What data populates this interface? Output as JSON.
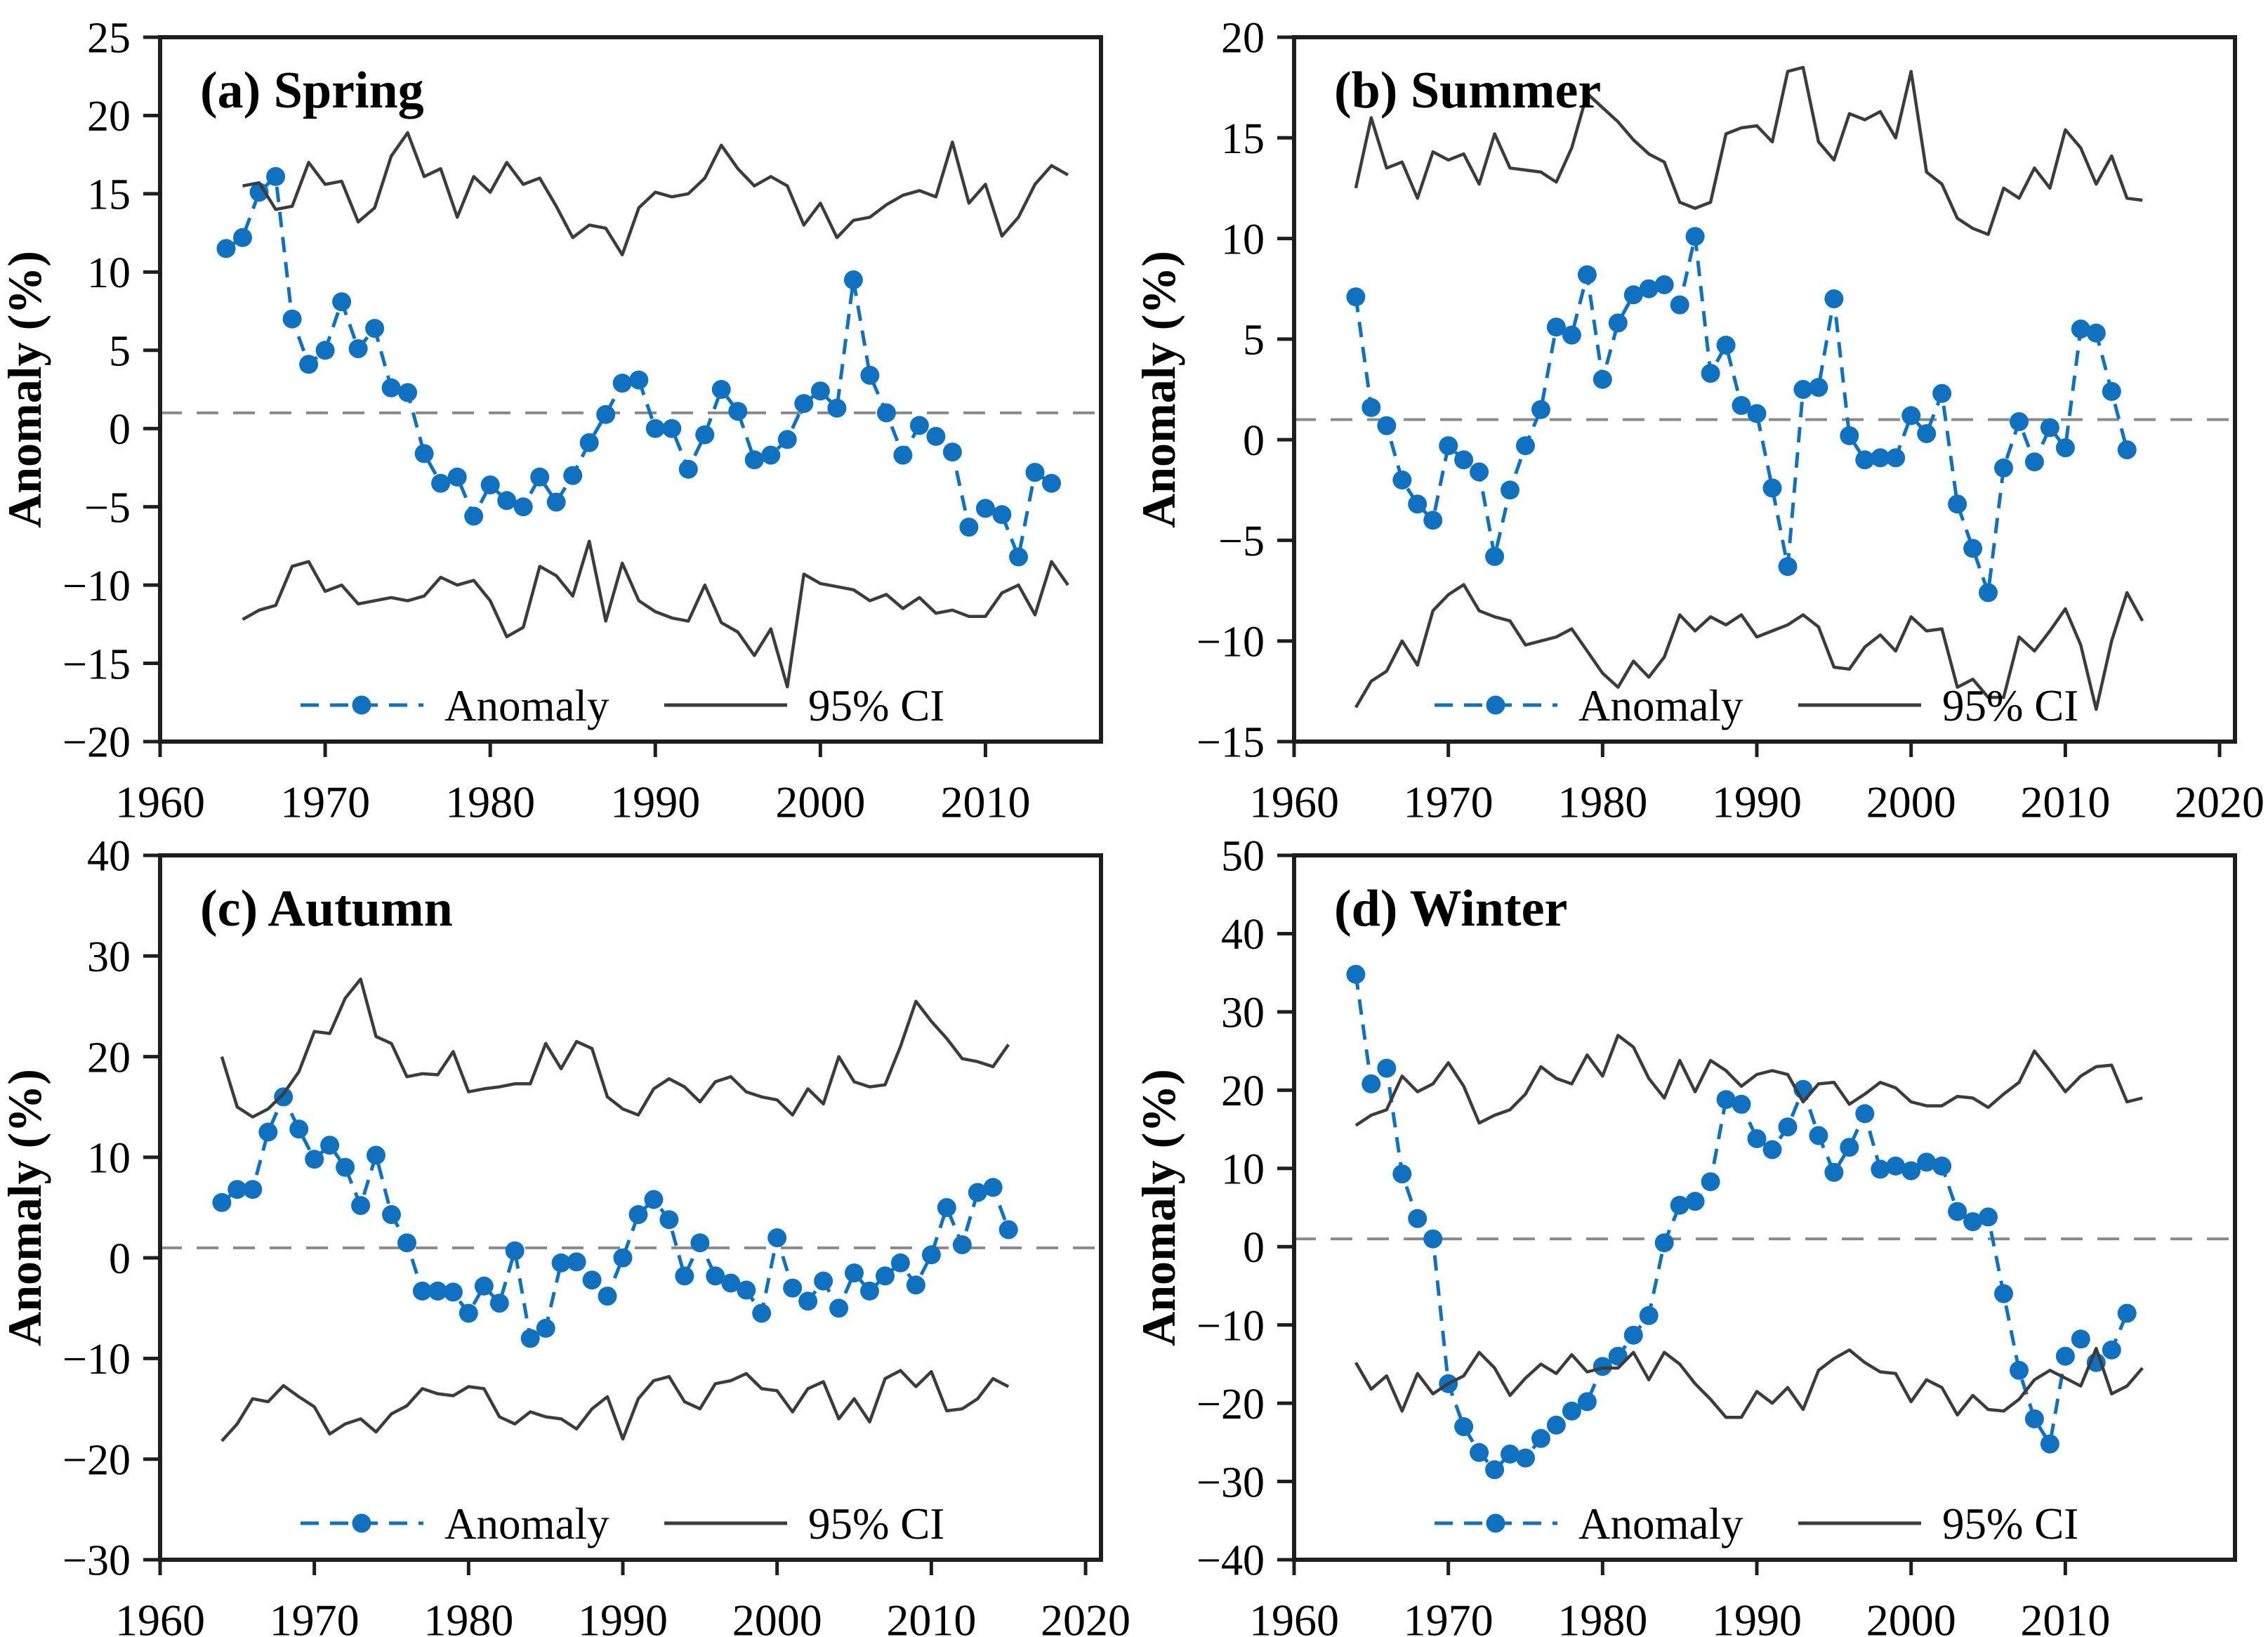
{
  "page": {
    "background": "#ffffff"
  },
  "colors": {
    "anomaly_blue": "#1171C1",
    "ci_line": "#3C3C3C",
    "reference_line": "#8A8A8A",
    "axis": "#1E1E1E",
    "tick_text": "#000000"
  },
  "chart_data": [
    {
      "type": "line",
      "title": "(a) Spring",
      "ylabel": "Anomaly (%)",
      "xlim": [
        1960,
        2017
      ],
      "ylim": [
        -20,
        25
      ],
      "xticks": [
        1960,
        1970,
        1980,
        1990,
        2000,
        2010
      ],
      "yticks": [
        -20,
        -15,
        -10,
        -5,
        0,
        5,
        10,
        15,
        20,
        25
      ],
      "reference_y": 1,
      "grid": false,
      "legend_position": "bottom-inside",
      "legend": {
        "anomaly_label": "Anomaly",
        "ci_label": "95% CI"
      },
      "legend_text_color": "#6E6E6E",
      "series": [
        {
          "name": "Anomaly",
          "data_name": "anomaly-series",
          "style": "dashed_markers",
          "color": "#1171C1",
          "x_start": 1964,
          "y": [
            11.5,
            12.2,
            15.1,
            16.1,
            7.0,
            4.1,
            5.0,
            8.1,
            5.1,
            6.4,
            2.6,
            2.3,
            -1.6,
            -3.5,
            -3.1,
            -5.6,
            -3.6,
            -4.6,
            -5.0,
            -3.1,
            -4.7,
            -3.0,
            -0.9,
            0.9,
            2.9,
            3.1,
            0.0,
            0.0,
            -2.6,
            -0.4,
            2.5,
            1.1,
            -2.0,
            -1.7,
            -0.7,
            1.6,
            2.4,
            1.3,
            9.5,
            3.4,
            1.0,
            -1.7,
            0.2,
            -0.5,
            -1.5,
            -6.3,
            -5.1,
            -5.5,
            -8.2,
            -2.8,
            -3.5
          ]
        },
        {
          "name": "95% CI upper",
          "data_name": "ci-upper-line",
          "style": "solid",
          "color": "#3C3C3C",
          "x_start": 1965,
          "y": [
            15.5,
            15.7,
            14.0,
            14.2,
            17.0,
            15.6,
            15.8,
            13.2,
            14.1,
            17.4,
            18.9,
            16.1,
            16.6,
            13.5,
            16.1,
            15.1,
            17.0,
            15.6,
            16.0,
            14.2,
            12.2,
            13.0,
            12.8,
            11.1,
            14.1,
            15.1,
            14.8,
            15.0,
            16.0,
            18.1,
            16.6,
            15.5,
            16.1,
            15.5,
            13.0,
            14.4,
            12.2,
            13.3,
            13.5,
            14.3,
            14.9,
            15.2,
            14.8,
            18.3,
            14.4,
            15.6,
            12.3,
            13.5,
            15.6,
            16.8,
            16.2
          ]
        },
        {
          "name": "95% CI lower",
          "data_name": "ci-lower-line",
          "style": "solid",
          "color": "#3C3C3C",
          "x_start": 1965,
          "y": [
            -12.2,
            -11.6,
            -11.3,
            -8.8,
            -8.5,
            -10.4,
            -10.0,
            -11.2,
            -11.0,
            -10.8,
            -11.0,
            -10.7,
            -9.5,
            -10.0,
            -9.7,
            -11.0,
            -13.3,
            -12.7,
            -8.8,
            -9.4,
            -10.7,
            -7.2,
            -12.3,
            -8.6,
            -11.0,
            -11.7,
            -12.1,
            -12.3,
            -10.0,
            -12.4,
            -13.0,
            -14.5,
            -12.8,
            -16.5,
            -9.3,
            -9.9,
            -10.1,
            -10.3,
            -11.0,
            -10.6,
            -11.5,
            -10.8,
            -11.8,
            -11.6,
            -12.0,
            -12.0,
            -10.5,
            -10.0,
            -11.9,
            -8.5,
            -10.0
          ]
        }
      ]
    },
    {
      "type": "line",
      "title": "(b) Summer",
      "ylabel": "Anomaly (%)",
      "xlim": [
        1960,
        2021
      ],
      "ylim": [
        -15,
        20
      ],
      "xticks": [
        1960,
        1970,
        1980,
        1990,
        2000,
        2010,
        2020
      ],
      "yticks": [
        -15,
        -10,
        -5,
        0,
        5,
        10,
        15,
        20
      ],
      "reference_y": 1,
      "grid": false,
      "legend_position": "bottom-inside",
      "legend": {
        "anomaly_label": "Anomaly",
        "ci_label": "95% CI"
      },
      "legend_text_color": "#111111",
      "series": [
        {
          "name": "Anomaly",
          "data_name": "anomaly-series",
          "style": "dashed_markers",
          "color": "#1171C1",
          "x_start": 1964,
          "y": [
            7.1,
            1.6,
            0.7,
            -2.0,
            -3.2,
            -4.0,
            -0.3,
            -1.0,
            -1.6,
            -5.8,
            -2.5,
            -0.3,
            1.5,
            5.6,
            5.2,
            8.2,
            3.0,
            5.8,
            7.2,
            7.5,
            7.7,
            6.7,
            10.1,
            3.3,
            4.7,
            1.7,
            1.3,
            -2.4,
            -6.3,
            2.5,
            2.6,
            7.0,
            0.2,
            -1.0,
            -0.9,
            -0.9,
            1.2,
            0.3,
            2.3,
            -3.2,
            -5.4,
            -7.6,
            -1.4,
            0.9,
            -1.1,
            0.6,
            -0.4,
            5.5,
            5.3,
            2.4,
            -0.5
          ]
        },
        {
          "name": "95% CI upper",
          "data_name": "ci-upper-line",
          "style": "solid",
          "color": "#3C3C3C",
          "x_start": 1964,
          "y": [
            12.5,
            16.0,
            13.5,
            13.8,
            12.0,
            14.3,
            13.9,
            14.2,
            12.7,
            15.2,
            13.5,
            13.4,
            13.3,
            12.8,
            14.5,
            17.2,
            16.5,
            15.8,
            14.9,
            14.2,
            13.8,
            11.8,
            11.5,
            11.8,
            15.2,
            15.5,
            15.6,
            14.8,
            18.3,
            18.5,
            14.8,
            13.9,
            16.2,
            15.9,
            16.3,
            15.0,
            18.3,
            13.3,
            12.7,
            11.0,
            10.5,
            10.2,
            12.5,
            12.0,
            13.5,
            12.5,
            15.4,
            14.5,
            12.7,
            14.1,
            12.0,
            11.9
          ]
        },
        {
          "name": "95% CI lower",
          "data_name": "ci-lower-line",
          "style": "solid",
          "color": "#3C3C3C",
          "x_start": 1964,
          "y": [
            -13.3,
            -12.0,
            -11.5,
            -10.0,
            -11.2,
            -8.5,
            -7.7,
            -7.2,
            -8.5,
            -8.8,
            -9.0,
            -10.2,
            -10.0,
            -9.8,
            -9.4,
            -10.5,
            -11.6,
            -12.3,
            -11.0,
            -11.8,
            -10.8,
            -8.7,
            -9.5,
            -8.8,
            -9.2,
            -8.7,
            -9.8,
            -9.5,
            -9.2,
            -8.7,
            -9.3,
            -11.3,
            -11.4,
            -10.3,
            -9.7,
            -10.5,
            -8.8,
            -9.5,
            -9.4,
            -12.3,
            -11.9,
            -12.8,
            -12.8,
            -9.8,
            -10.5,
            -9.5,
            -8.4,
            -10.2,
            -13.4,
            -10.0,
            -7.6,
            -9.0
          ]
        }
      ]
    },
    {
      "type": "line",
      "title": "(c) Autumn",
      "ylabel": "Anomaly (%)",
      "xlim": [
        1960,
        2021
      ],
      "ylim": [
        -30,
        40
      ],
      "xticks": [
        1960,
        1970,
        1980,
        1990,
        2000,
        2010,
        2020
      ],
      "yticks": [
        -30,
        -20,
        -10,
        0,
        10,
        20,
        30,
        40
      ],
      "reference_y": 1,
      "grid": false,
      "legend_position": "bottom-inside",
      "legend": {
        "anomaly_label": "Anomaly",
        "ci_label": "95% CI"
      },
      "legend_text_color": "#111111",
      "series": [
        {
          "name": "Anomaly",
          "data_name": "anomaly-series",
          "style": "dashed_markers",
          "color": "#1171C1",
          "x_start": 1964,
          "y": [
            5.5,
            6.8,
            6.8,
            12.5,
            16.0,
            12.8,
            9.8,
            11.2,
            9.0,
            5.2,
            10.2,
            4.3,
            1.5,
            -3.3,
            -3.3,
            -3.4,
            -5.5,
            -2.8,
            -4.5,
            0.7,
            -8.0,
            -7.0,
            -0.5,
            -0.4,
            -2.2,
            -3.8,
            0.0,
            4.3,
            5.8,
            3.8,
            -1.8,
            1.5,
            -1.8,
            -2.5,
            -3.2,
            -5.5,
            2.0,
            -3.0,
            -4.3,
            -2.3,
            -5.0,
            -1.5,
            -3.3,
            -1.8,
            -0.5,
            -2.7,
            0.3,
            5.0,
            1.3,
            6.5,
            7.0,
            2.8
          ]
        },
        {
          "name": "95% CI upper",
          "data_name": "ci-upper-line",
          "style": "solid",
          "color": "#3C3C3C",
          "x_start": 1964,
          "y": [
            20.0,
            15.0,
            14.0,
            14.8,
            16.3,
            18.5,
            22.5,
            22.3,
            25.8,
            27.7,
            22.0,
            21.3,
            18.0,
            18.3,
            18.2,
            20.5,
            16.5,
            16.8,
            17.0,
            17.3,
            17.3,
            21.3,
            18.8,
            21.5,
            20.8,
            16.0,
            14.8,
            14.2,
            16.8,
            17.8,
            17.0,
            15.5,
            17.5,
            18.0,
            16.5,
            16.0,
            15.7,
            14.2,
            16.8,
            15.3,
            20.0,
            17.5,
            17.0,
            17.2,
            21.0,
            25.5,
            23.5,
            21.8,
            19.8,
            19.5,
            19.0,
            21.2
          ]
        },
        {
          "name": "95% CI lower",
          "data_name": "ci-lower-line",
          "style": "solid",
          "color": "#3C3C3C",
          "x_start": 1964,
          "y": [
            -18.2,
            -16.5,
            -14.0,
            -14.3,
            -12.7,
            -13.8,
            -14.8,
            -17.5,
            -16.5,
            -16.0,
            -17.3,
            -15.5,
            -14.7,
            -13.0,
            -13.5,
            -13.7,
            -12.8,
            -13.0,
            -15.8,
            -16.5,
            -15.3,
            -15.8,
            -16.0,
            -17.0,
            -15.0,
            -13.8,
            -18.0,
            -14.0,
            -12.2,
            -11.8,
            -14.3,
            -15.0,
            -12.5,
            -12.2,
            -11.5,
            -13.0,
            -13.2,
            -15.3,
            -13.0,
            -12.3,
            -16.0,
            -14.0,
            -16.3,
            -12.0,
            -11.2,
            -12.8,
            -11.3,
            -15.2,
            -15.0,
            -14.0,
            -12.0,
            -12.8
          ]
        }
      ]
    },
    {
      "type": "line",
      "title": "(d) Winter",
      "ylabel": "Anomaly (%)",
      "xlim": [
        1960,
        2021
      ],
      "ylim": [
        -40,
        50
      ],
      "xticks": [
        1960,
        1970,
        1980,
        1990,
        2000,
        2010
      ],
      "yticks": [
        -40,
        -30,
        -20,
        -10,
        0,
        10,
        20,
        30,
        40,
        50
      ],
      "reference_y": 1,
      "grid": false,
      "legend_position": "bottom-inside",
      "legend": {
        "anomaly_label": "Anomaly",
        "ci_label": "95% CI"
      },
      "legend_text_color": "#111111",
      "series": [
        {
          "name": "Anomaly",
          "data_name": "anomaly-series",
          "style": "dashed_markers",
          "color": "#1171C1",
          "x_start": 1964,
          "y": [
            34.8,
            20.8,
            22.8,
            9.3,
            3.6,
            1.0,
            -17.5,
            -23.0,
            -26.3,
            -28.5,
            -26.5,
            -27.0,
            -24.5,
            -22.8,
            -21.0,
            -19.8,
            -15.3,
            -14.0,
            -11.3,
            -8.8,
            0.5,
            5.3,
            5.8,
            8.3,
            18.8,
            18.2,
            13.8,
            12.4,
            15.3,
            20.1,
            14.2,
            9.5,
            12.7,
            17.0,
            9.9,
            10.3,
            9.7,
            10.8,
            10.3,
            4.5,
            3.2,
            3.8,
            -6.0,
            -15.8,
            -22.0,
            -25.2,
            -14.0,
            -11.8,
            -14.8,
            -13.2,
            -8.5
          ]
        },
        {
          "name": "95% CI upper",
          "data_name": "ci-upper-line",
          "style": "solid",
          "color": "#3C3C3C",
          "x_start": 1964,
          "y": [
            15.5,
            16.8,
            17.5,
            21.8,
            19.8,
            20.8,
            23.5,
            20.5,
            15.8,
            16.8,
            17.5,
            19.5,
            23.0,
            21.5,
            20.8,
            24.5,
            21.8,
            27.0,
            25.5,
            21.5,
            19.0,
            23.8,
            19.8,
            23.8,
            22.5,
            20.5,
            22.0,
            22.5,
            22.0,
            18.5,
            20.8,
            21.0,
            18.2,
            19.5,
            21.0,
            20.3,
            18.5,
            18.0,
            18.0,
            19.2,
            19.0,
            17.8,
            19.5,
            21.0,
            25.0,
            22.5,
            19.8,
            21.8,
            23.0,
            23.2,
            18.5,
            19.0
          ]
        },
        {
          "name": "95% CI lower",
          "data_name": "ci-lower-line",
          "style": "solid",
          "color": "#3C3C3C",
          "x_start": 1964,
          "y": [
            -14.8,
            -18.2,
            -16.5,
            -21.0,
            -16.2,
            -18.8,
            -17.5,
            -16.5,
            -13.5,
            -15.5,
            -19.0,
            -16.8,
            -15.0,
            -16.2,
            -13.8,
            -16.0,
            -15.5,
            -15.5,
            -13.5,
            -17.0,
            -13.5,
            -15.0,
            -17.5,
            -19.5,
            -21.8,
            -21.8,
            -18.5,
            -20.0,
            -18.0,
            -20.8,
            -15.8,
            -14.3,
            -13.2,
            -14.8,
            -16.0,
            -16.2,
            -19.8,
            -17.0,
            -18.0,
            -21.5,
            -19.0,
            -20.8,
            -21.0,
            -19.5,
            -17.0,
            -15.8,
            -16.8,
            -17.8,
            -13.0,
            -18.8,
            -17.8,
            -15.5
          ]
        }
      ]
    }
  ]
}
